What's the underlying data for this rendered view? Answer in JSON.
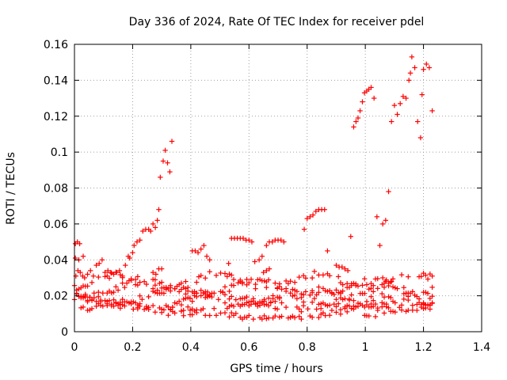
{
  "chart_data": {
    "type": "scatter",
    "title": "Day 336 of 2024, Rate Of TEC Index for receiver pdel",
    "xlabel": "GPS time / hours",
    "ylabel": "ROTI / TECUs",
    "xlim": [
      0,
      1.4
    ],
    "ylim": [
      0,
      0.16
    ],
    "xticks": [
      0,
      0.2,
      0.4,
      0.6,
      0.8,
      1,
      1.2,
      1.4
    ],
    "xtick_labels": [
      "0",
      "0.2",
      "0.4",
      "0.6",
      "0.8",
      "1",
      "1.2",
      "1.4"
    ],
    "yticks": [
      0,
      0.02,
      0.04,
      0.06,
      0.08,
      0.1,
      0.12,
      0.14,
      0.16
    ],
    "ytick_labels": [
      "0",
      "0.02",
      "0.04",
      "0.06",
      "0.08",
      "0.1",
      "0.12",
      "0.14",
      "0.16"
    ],
    "grid": true,
    "marker": "+",
    "color": "#ff0000",
    "series": [
      {
        "name": "ROTI",
        "points": [
          [
            0.003,
            0.049
          ],
          [
            0.01,
            0.05
          ],
          [
            0.018,
            0.049
          ],
          [
            0.003,
            0.041
          ],
          [
            0.015,
            0.04
          ],
          [
            0.03,
            0.042
          ],
          [
            0.005,
            0.031
          ],
          [
            0.012,
            0.034
          ],
          [
            0.02,
            0.033
          ],
          [
            0.028,
            0.031
          ],
          [
            0.035,
            0.03
          ],
          [
            0.045,
            0.032
          ],
          [
            0.055,
            0.034
          ],
          [
            0.065,
            0.031
          ],
          [
            0.075,
            0.037
          ],
          [
            0.085,
            0.038
          ],
          [
            0.095,
            0.04
          ],
          [
            0.105,
            0.033
          ],
          [
            0.115,
            0.034
          ],
          [
            0.125,
            0.033
          ],
          [
            0.135,
            0.032
          ],
          [
            0.145,
            0.033
          ],
          [
            0.155,
            0.034
          ],
          [
            0.165,
            0.031
          ],
          [
            0.175,
            0.037
          ],
          [
            0.185,
            0.042
          ],
          [
            0.19,
            0.041
          ],
          [
            0.2,
            0.044
          ],
          [
            0.205,
            0.048
          ],
          [
            0.215,
            0.05
          ],
          [
            0.225,
            0.051
          ],
          [
            0.235,
            0.056
          ],
          [
            0.245,
            0.057
          ],
          [
            0.255,
            0.057
          ],
          [
            0.262,
            0.056
          ],
          [
            0.27,
            0.06
          ],
          [
            0.278,
            0.058
          ],
          [
            0.285,
            0.062
          ],
          [
            0.29,
            0.068
          ],
          [
            0.295,
            0.086
          ],
          [
            0.305,
            0.095
          ],
          [
            0.312,
            0.101
          ],
          [
            0.32,
            0.094
          ],
          [
            0.328,
            0.089
          ],
          [
            0.335,
            0.106
          ],
          [
            0.29,
            0.035
          ],
          [
            0.3,
            0.035
          ],
          [
            0.28,
            0.032
          ],
          [
            0.27,
            0.033
          ],
          [
            0.405,
            0.045
          ],
          [
            0.415,
            0.045
          ],
          [
            0.425,
            0.044
          ],
          [
            0.435,
            0.046
          ],
          [
            0.445,
            0.048
          ],
          [
            0.455,
            0.042
          ],
          [
            0.465,
            0.04
          ],
          [
            0.53,
            0.038
          ],
          [
            0.54,
            0.052
          ],
          [
            0.55,
            0.052
          ],
          [
            0.56,
            0.052
          ],
          [
            0.57,
            0.052
          ],
          [
            0.58,
            0.052
          ],
          [
            0.59,
            0.051
          ],
          [
            0.6,
            0.051
          ],
          [
            0.61,
            0.05
          ],
          [
            0.62,
            0.039
          ],
          [
            0.635,
            0.04
          ],
          [
            0.645,
            0.042
          ],
          [
            0.66,
            0.048
          ],
          [
            0.67,
            0.05
          ],
          [
            0.68,
            0.05
          ],
          [
            0.69,
            0.051
          ],
          [
            0.7,
            0.051
          ],
          [
            0.71,
            0.051
          ],
          [
            0.72,
            0.05
          ],
          [
            0.65,
            0.033
          ],
          [
            0.66,
            0.034
          ],
          [
            0.67,
            0.035
          ],
          [
            0.79,
            0.057
          ],
          [
            0.8,
            0.063
          ],
          [
            0.81,
            0.064
          ],
          [
            0.82,
            0.065
          ],
          [
            0.83,
            0.067
          ],
          [
            0.84,
            0.068
          ],
          [
            0.85,
            0.068
          ],
          [
            0.86,
            0.068
          ],
          [
            0.87,
            0.045
          ],
          [
            0.9,
            0.037
          ],
          [
            0.91,
            0.036
          ],
          [
            0.92,
            0.036
          ],
          [
            0.93,
            0.035
          ],
          [
            0.94,
            0.034
          ],
          [
            0.95,
            0.053
          ],
          [
            0.96,
            0.114
          ],
          [
            0.968,
            0.117
          ],
          [
            0.975,
            0.119
          ],
          [
            0.982,
            0.123
          ],
          [
            0.99,
            0.128
          ],
          [
            0.997,
            0.133
          ],
          [
            1.005,
            0.134
          ],
          [
            1.012,
            0.135
          ],
          [
            1.02,
            0.136
          ],
          [
            1.03,
            0.13
          ],
          [
            1.04,
            0.064
          ],
          [
            1.05,
            0.048
          ],
          [
            1.06,
            0.06
          ],
          [
            1.07,
            0.062
          ],
          [
            1.08,
            0.078
          ],
          [
            1.09,
            0.117
          ],
          [
            1.1,
            0.126
          ],
          [
            1.11,
            0.121
          ],
          [
            1.12,
            0.127
          ],
          [
            1.13,
            0.131
          ],
          [
            1.14,
            0.13
          ],
          [
            1.15,
            0.14
          ],
          [
            1.155,
            0.144
          ],
          [
            1.16,
            0.153
          ],
          [
            1.17,
            0.147
          ],
          [
            1.18,
            0.117
          ],
          [
            1.19,
            0.108
          ],
          [
            1.195,
            0.132
          ],
          [
            1.2,
            0.146
          ],
          [
            1.21,
            0.149
          ],
          [
            1.22,
            0.147
          ],
          [
            1.23,
            0.123
          ],
          [
            1.06,
            0.03
          ],
          [
            1.07,
            0.028
          ],
          [
            1.08,
            0.027
          ],
          [
            1.09,
            0.028
          ]
        ]
      }
    ]
  }
}
